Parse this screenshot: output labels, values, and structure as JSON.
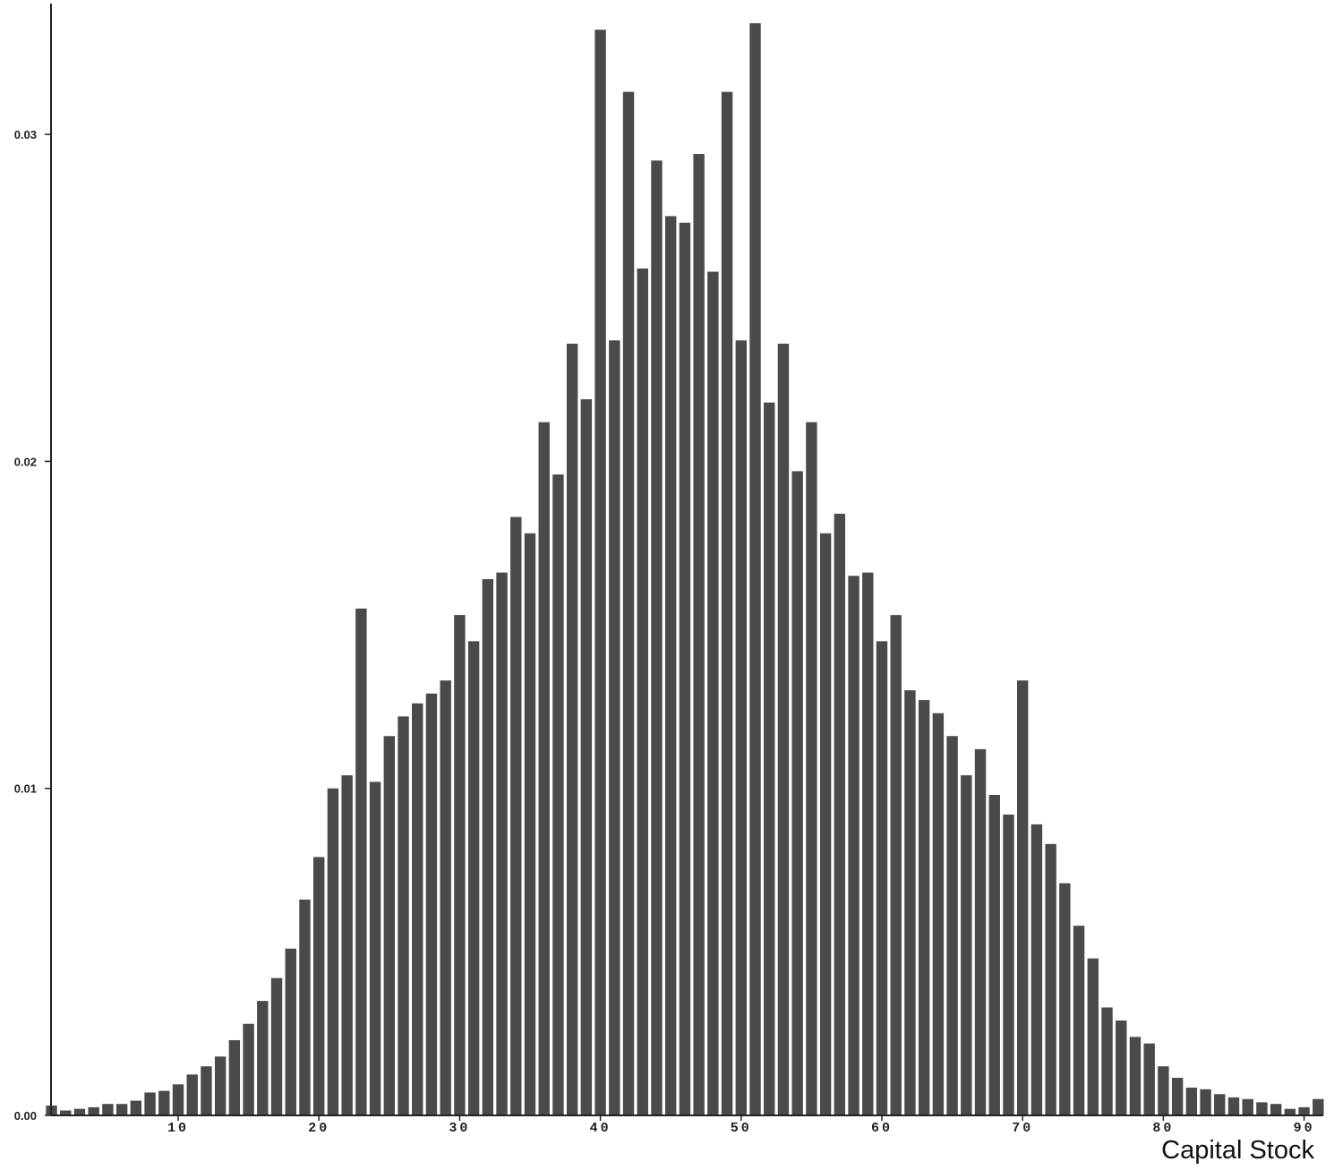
{
  "chart_data": {
    "type": "bar",
    "title": "",
    "xlabel": "Capital Stock",
    "ylabel": "",
    "xlim": [
      1,
      91
    ],
    "ylim": [
      0,
      0.034
    ],
    "grid": false,
    "legend": "none",
    "bar_color": "#4a4a4a",
    "x_ticks": [
      10,
      20,
      30,
      40,
      50,
      60,
      70,
      80,
      90
    ],
    "x_tick_labels": [
      "10",
      "20",
      "30",
      "40",
      "50",
      "60",
      "70",
      "80",
      "90"
    ],
    "y_ticks": [
      0.0,
      0.01,
      0.02,
      0.03
    ],
    "y_tick_labels": [
      "0.00",
      "0.01",
      "0.02",
      "0.03"
    ],
    "x": [
      1,
      2,
      3,
      4,
      5,
      6,
      7,
      8,
      9,
      10,
      11,
      12,
      13,
      14,
      15,
      16,
      17,
      18,
      19,
      20,
      21,
      22,
      23,
      24,
      25,
      26,
      27,
      28,
      29,
      30,
      31,
      32,
      33,
      34,
      35,
      36,
      37,
      38,
      39,
      40,
      41,
      42,
      43,
      44,
      45,
      46,
      47,
      48,
      49,
      50,
      51,
      52,
      53,
      54,
      55,
      56,
      57,
      58,
      59,
      60,
      61,
      62,
      63,
      64,
      65,
      66,
      67,
      68,
      69,
      70,
      71,
      72,
      73,
      74,
      75,
      76,
      77,
      78,
      79,
      80,
      81,
      82,
      83,
      84,
      85,
      86,
      87,
      88,
      89,
      90,
      91
    ],
    "values": [
      0.0003,
      0.00015,
      0.0002,
      0.00025,
      0.00035,
      0.00035,
      0.00045,
      0.0007,
      0.00075,
      0.00095,
      0.00125,
      0.0015,
      0.0018,
      0.0023,
      0.0028,
      0.0035,
      0.0042,
      0.0051,
      0.0066,
      0.0079,
      0.01,
      0.0104,
      0.0155,
      0.0102,
      0.0116,
      0.0122,
      0.0126,
      0.0129,
      0.0133,
      0.0153,
      0.0145,
      0.0164,
      0.0166,
      0.0183,
      0.0178,
      0.0212,
      0.0196,
      0.0236,
      0.0219,
      0.0332,
      0.0237,
      0.0313,
      0.0259,
      0.0292,
      0.0275,
      0.0273,
      0.0294,
      0.0258,
      0.0313,
      0.0237,
      0.0334,
      0.0218,
      0.0236,
      0.0197,
      0.0212,
      0.0178,
      0.0184,
      0.0165,
      0.0166,
      0.0145,
      0.0153,
      0.013,
      0.0127,
      0.0123,
      0.0116,
      0.0104,
      0.0112,
      0.0098,
      0.0092,
      0.0133,
      0.0089,
      0.0083,
      0.0071,
      0.0058,
      0.0048,
      0.0033,
      0.0029,
      0.0024,
      0.0022,
      0.0015,
      0.00115,
      0.00085,
      0.0008,
      0.00065,
      0.00055,
      0.0005,
      0.0004,
      0.00035,
      0.0002,
      0.00025,
      0.0005
    ]
  }
}
